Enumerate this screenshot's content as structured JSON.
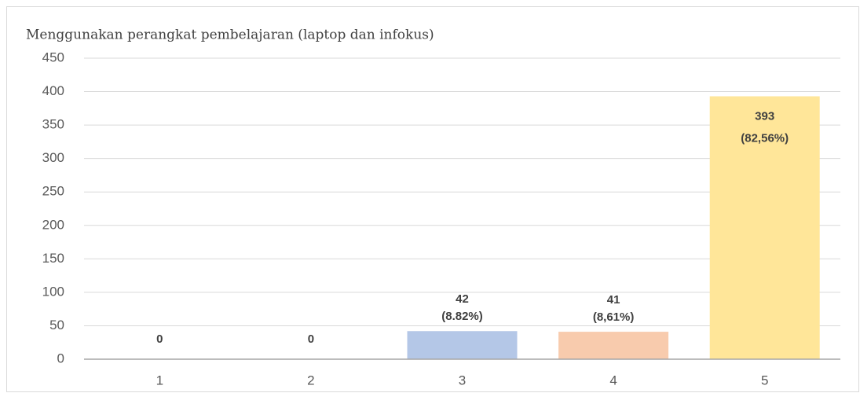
{
  "chart_data": {
    "type": "bar",
    "title": "Menggunakan perangkat pembelajaran (laptop dan infokus)",
    "categories": [
      "1",
      "2",
      "3",
      "4",
      "5"
    ],
    "values": [
      0,
      0,
      42,
      41,
      393
    ],
    "value_labels": [
      [
        "0"
      ],
      [
        "0"
      ],
      [
        "42",
        "(8.82%)"
      ],
      [
        "41",
        "(8,61%)"
      ],
      [
        "393",
        "(82,56%)"
      ]
    ],
    "colors": [
      null,
      null,
      "#b4c7e7",
      "#f8cbad",
      "#ffe699"
    ],
    "ylim": [
      0,
      450
    ],
    "yticks": [
      0,
      50,
      100,
      150,
      200,
      250,
      300,
      350,
      400,
      450
    ],
    "grid": true
  }
}
